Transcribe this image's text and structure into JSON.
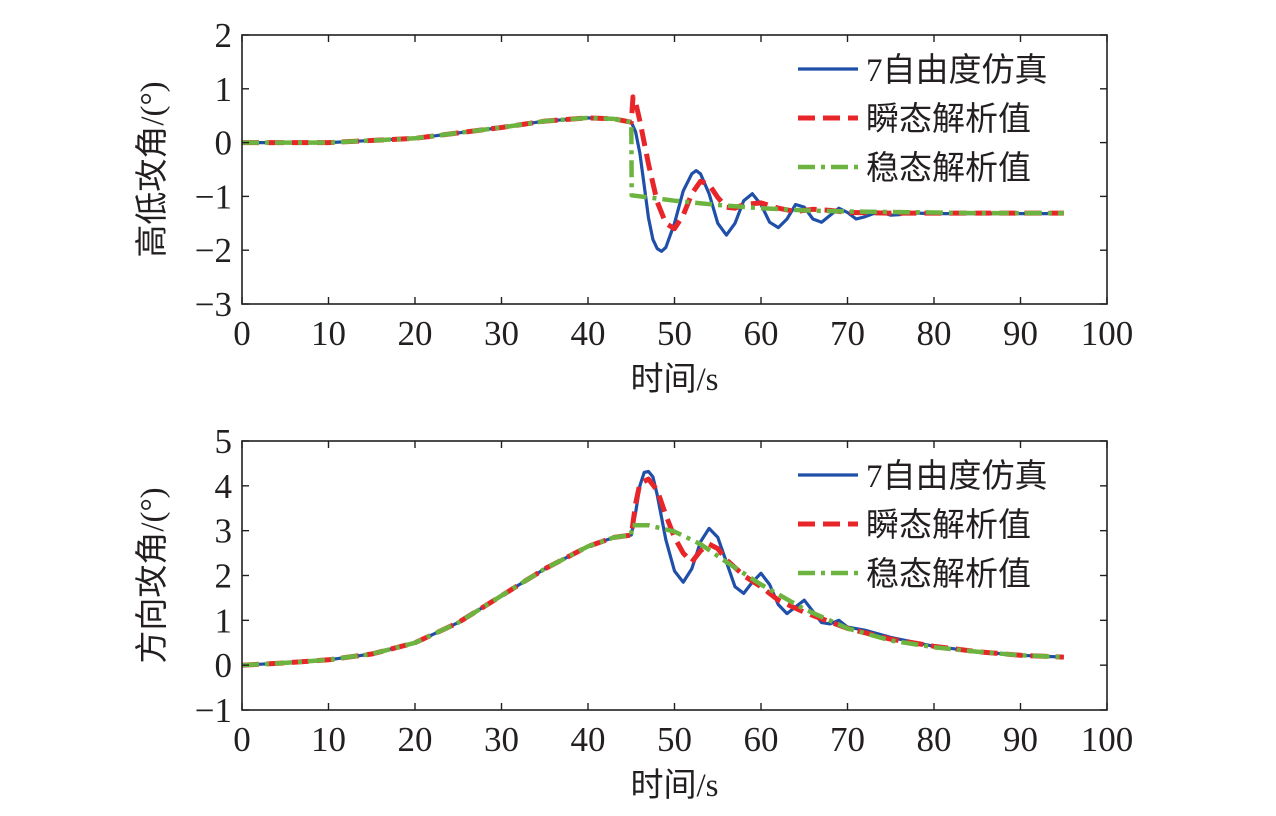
{
  "colors": {
    "sim7dof": "#1f4fa8",
    "transient": "#e8262a",
    "steady": "#6cb33f",
    "axis": "#231f20"
  },
  "chart_data": [
    {
      "type": "line",
      "xlabel": "时间/s",
      "ylabel": "高低攻角/(°)",
      "xlim": [
        0,
        100
      ],
      "ylim": [
        -3,
        2
      ],
      "xticks": [
        "0",
        "10",
        "20",
        "30",
        "40",
        "50",
        "60",
        "70",
        "80",
        "90",
        "100"
      ],
      "yticks": [
        "−3",
        "−2",
        "−1",
        "0",
        "1",
        "2"
      ],
      "legend": {
        "placement": "top-right",
        "entries": [
          "7自由度仿真",
          "瞬态解析值",
          "稳态解析值"
        ]
      },
      "series": [
        {
          "name": "7自由度仿真",
          "style": "solid",
          "x": [
            0,
            10,
            20,
            30,
            35,
            40,
            43,
            45,
            45.5,
            46,
            46.5,
            47,
            47.5,
            48,
            48.5,
            49,
            50,
            51,
            52,
            52.5,
            53,
            54,
            55,
            56,
            57,
            58,
            59,
            60,
            61,
            62,
            63,
            64,
            65,
            66,
            67,
            68,
            69,
            70,
            71,
            72,
            73,
            74,
            75,
            76,
            77,
            78,
            80,
            85,
            90,
            95
          ],
          "values": [
            0.0,
            0.0,
            0.08,
            0.28,
            0.4,
            0.46,
            0.44,
            0.38,
            0.2,
            -0.2,
            -0.8,
            -1.4,
            -1.8,
            -1.97,
            -2.02,
            -1.95,
            -1.5,
            -0.9,
            -0.58,
            -0.52,
            -0.58,
            -0.95,
            -1.5,
            -1.72,
            -1.5,
            -1.08,
            -0.95,
            -1.15,
            -1.48,
            -1.58,
            -1.42,
            -1.15,
            -1.2,
            -1.42,
            -1.48,
            -1.35,
            -1.22,
            -1.3,
            -1.42,
            -1.38,
            -1.32,
            -1.3,
            -1.35,
            -1.34,
            -1.3,
            -1.31,
            -1.32,
            -1.32,
            -1.32,
            -1.32
          ]
        },
        {
          "name": "瞬态解析值",
          "style": "dashed",
          "x": [
            0,
            10,
            20,
            30,
            35,
            40,
            43,
            45,
            45.2,
            45.5,
            46,
            47,
            48,
            49,
            50,
            51,
            52,
            53,
            54,
            55,
            56,
            57,
            58,
            60,
            62,
            64,
            66,
            68,
            70,
            75,
            80,
            85,
            90,
            95
          ],
          "values": [
            0.0,
            0.0,
            0.08,
            0.28,
            0.4,
            0.46,
            0.44,
            0.38,
            0.85,
            0.75,
            0.4,
            -0.4,
            -1.1,
            -1.5,
            -1.6,
            -1.35,
            -0.95,
            -0.72,
            -0.78,
            -1.02,
            -1.2,
            -1.22,
            -1.15,
            -1.12,
            -1.22,
            -1.28,
            -1.24,
            -1.26,
            -1.3,
            -1.31,
            -1.31,
            -1.31,
            -1.31,
            -1.31
          ]
        },
        {
          "name": "稳态解析值",
          "style": "dashdot",
          "x": [
            0,
            10,
            20,
            30,
            35,
            40,
            43,
            45,
            45.05,
            50,
            55,
            60,
            65,
            70,
            75,
            80,
            85,
            90,
            95
          ],
          "values": [
            0.0,
            0.0,
            0.08,
            0.28,
            0.4,
            0.46,
            0.44,
            0.38,
            -0.98,
            -1.08,
            -1.16,
            -1.22,
            -1.26,
            -1.28,
            -1.29,
            -1.3,
            -1.31,
            -1.31,
            -1.31
          ]
        }
      ]
    },
    {
      "type": "line",
      "xlabel": "时间/s",
      "ylabel": "方向攻角/(°)",
      "xlim": [
        0,
        100
      ],
      "ylim": [
        -1,
        5
      ],
      "xticks": [
        "0",
        "10",
        "20",
        "30",
        "40",
        "50",
        "60",
        "70",
        "80",
        "90",
        "100"
      ],
      "yticks": [
        "−1",
        "0",
        "1",
        "2",
        "3",
        "4",
        "5"
      ],
      "legend": {
        "placement": "top-right",
        "entries": [
          "7自由度仿真",
          "瞬态解析值",
          "稳态解析值"
        ]
      },
      "series": [
        {
          "name": "7自由度仿真",
          "style": "solid",
          "x": [
            0,
            5,
            10,
            15,
            20,
            25,
            30,
            35,
            40,
            43,
            45,
            45.5,
            46,
            46.5,
            47,
            47.5,
            48,
            49,
            50,
            51,
            52,
            53,
            54,
            55,
            56,
            57,
            58,
            59,
            60,
            61,
            62,
            63,
            64,
            65,
            66,
            67,
            68,
            69,
            70,
            72,
            75,
            80,
            85,
            90,
            95
          ],
          "values": [
            0.0,
            0.05,
            0.12,
            0.25,
            0.5,
            0.95,
            1.55,
            2.15,
            2.65,
            2.85,
            2.9,
            3.4,
            4.0,
            4.3,
            4.32,
            4.2,
            3.8,
            2.8,
            2.1,
            1.85,
            2.15,
            2.75,
            3.05,
            2.85,
            2.3,
            1.75,
            1.6,
            1.85,
            2.05,
            1.8,
            1.35,
            1.15,
            1.3,
            1.45,
            1.2,
            0.95,
            0.92,
            1.0,
            0.85,
            0.78,
            0.62,
            0.42,
            0.3,
            0.22,
            0.18
          ]
        },
        {
          "name": "瞬态解析值",
          "style": "dashed",
          "x": [
            0,
            5,
            10,
            15,
            20,
            25,
            30,
            35,
            40,
            43,
            45,
            45.5,
            46,
            47,
            48,
            49,
            50,
            51,
            52,
            53,
            54,
            55,
            56,
            58,
            60,
            62,
            65,
            70,
            75,
            80,
            85,
            90,
            95
          ],
          "values": [
            0.0,
            0.05,
            0.12,
            0.25,
            0.5,
            0.95,
            1.55,
            2.15,
            2.65,
            2.85,
            2.9,
            3.6,
            4.05,
            4.15,
            3.9,
            3.35,
            2.85,
            2.5,
            2.3,
            2.55,
            2.7,
            2.6,
            2.35,
            2.0,
            1.75,
            1.45,
            1.18,
            0.82,
            0.58,
            0.42,
            0.3,
            0.22,
            0.18
          ]
        },
        {
          "name": "稳态解析值",
          "style": "dashdot",
          "x": [
            0,
            5,
            10,
            15,
            20,
            25,
            30,
            35,
            40,
            43,
            45,
            45.05,
            47,
            50,
            53,
            56,
            60,
            65,
            70,
            75,
            80,
            85,
            90,
            95
          ],
          "values": [
            0.0,
            0.05,
            0.12,
            0.25,
            0.5,
            0.95,
            1.55,
            2.15,
            2.65,
            2.85,
            2.9,
            3.12,
            3.12,
            2.98,
            2.7,
            2.3,
            1.8,
            1.25,
            0.82,
            0.55,
            0.4,
            0.3,
            0.22,
            0.18
          ]
        }
      ]
    }
  ]
}
